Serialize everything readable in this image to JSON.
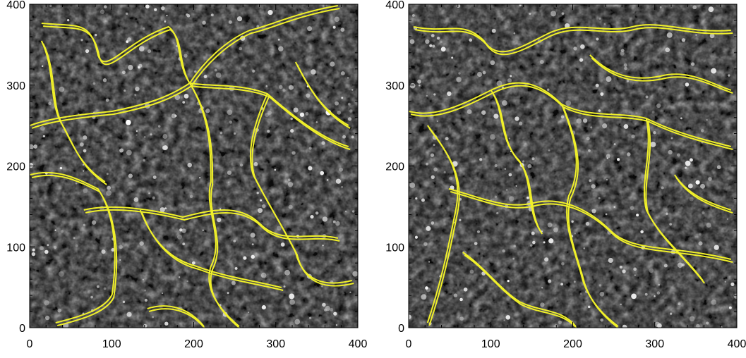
{
  "image_colors": {
    "background": "#101010",
    "bright_network": "#e6e6e6",
    "contour": "#f0f02a",
    "axis": "#000000"
  },
  "panels": [
    {
      "x_ticks": [
        "0",
        "100",
        "200",
        "300",
        "400"
      ],
      "y_ticks": [
        "0",
        "100",
        "200",
        "300",
        "400"
      ],
      "x_range": [
        0,
        400
      ],
      "y_range": [
        0,
        400
      ]
    },
    {
      "x_ticks": [
        "0",
        "100",
        "200",
        "300",
        "400"
      ],
      "y_ticks": [
        "0",
        "100",
        "200",
        "300",
        "400"
      ],
      "x_range": [
        0,
        400
      ],
      "y_range": [
        0,
        400
      ]
    }
  ]
}
